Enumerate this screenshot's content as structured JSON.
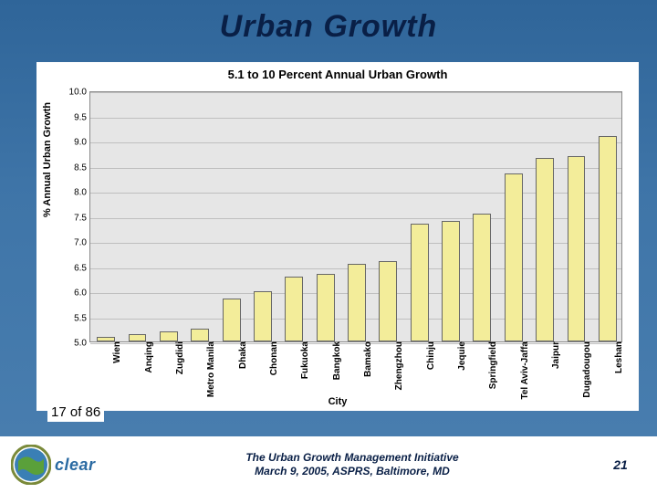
{
  "slide": {
    "title": "Urban Growth",
    "title_fontsize": 34,
    "title_color": "#091f46",
    "bg_gradient_top": "#2f6599",
    "bg_gradient_bottom": "#4a7fb0"
  },
  "chart": {
    "type": "bar",
    "title": "5.1 to 10 Percent Annual Urban Growth",
    "title_fontsize": 13,
    "ylabel": "% Annual Urban Growth",
    "xlabel": "City",
    "axis_label_fontsize": 11,
    "ylim": [
      5.0,
      10.0
    ],
    "ytick_step": 0.5,
    "yticks": [
      5.0,
      5.5,
      6.0,
      6.5,
      7.0,
      7.5,
      8.0,
      8.5,
      9.0,
      9.5,
      10.0
    ],
    "xtick_fontsize": 10,
    "grid_color": "#bfbfbf",
    "grid": true,
    "plot_bg": "#e6e6e6",
    "bar_color": "#f3ed9a",
    "bar_border": "#666666",
    "bar_width": 0.58,
    "categories": [
      "Wien",
      "Anqing",
      "Zugdidi",
      "Metro Manila",
      "Dhaka",
      "Chonan",
      "Fukuoka",
      "Bangkok",
      "Bamako",
      "Zhengzhou",
      "Chinju",
      "Jequie",
      "Springfield",
      "Tel Aviv-Jaffa",
      "Jaipur",
      "Dugadougou",
      "Leshan"
    ],
    "values": [
      5.1,
      5.15,
      5.2,
      5.25,
      5.85,
      6.0,
      6.3,
      6.35,
      6.55,
      6.6,
      7.35,
      7.4,
      7.55,
      8.35,
      8.65,
      8.7,
      9.1
    ]
  },
  "subcount": {
    "text": "17 of 86",
    "fontsize": 15
  },
  "footer": {
    "logo_text": "clear",
    "line1": "The Urban Growth Management Initiative",
    "line2": "March 9, 2005, ASPRS, Baltimore, MD",
    "fontsize": 12,
    "page_number": "21"
  }
}
